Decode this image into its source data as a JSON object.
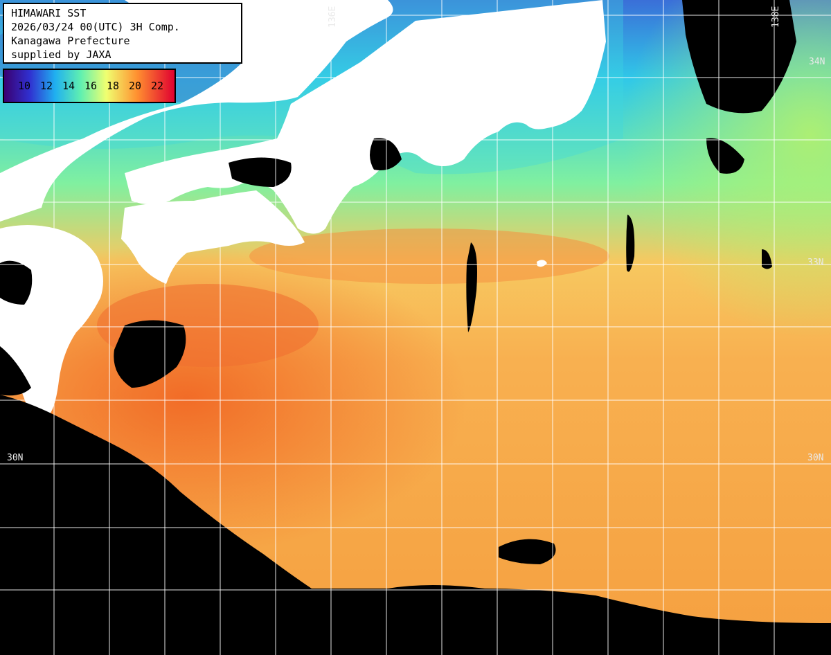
{
  "header": {
    "line1": "HIMAWARI SST",
    "line2": "2026/03/24 00(UTC) 3H Comp.",
    "line3": "Kanagawa Prefecture",
    "line4": "supplied by JAXA"
  },
  "legend": {
    "labels": [
      "10",
      "12",
      "14",
      "16",
      "18",
      "20",
      "22"
    ],
    "colors": [
      "#3a0080",
      "#2050e0",
      "#20d0e0",
      "#80ff80",
      "#ffff60",
      "#ff9030",
      "#e01030"
    ]
  },
  "grid_labels": {
    "lon_136": "136E",
    "lon_right": "138E",
    "lat_33_left": "",
    "lat_33": "33N",
    "lat_30_left": "30N",
    "lat_30_right": "30N",
    "lat_34_right": "34N"
  },
  "colors": {
    "land": "#ffffff",
    "no_data": "#000000",
    "grid": "#ffffff"
  }
}
